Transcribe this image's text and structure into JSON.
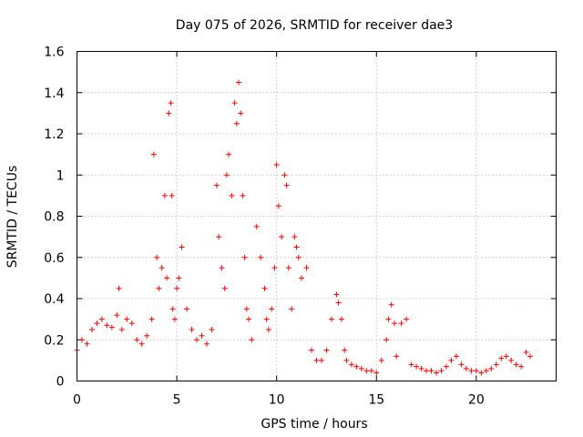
{
  "chart_data": {
    "type": "scatter",
    "title": "Day 075 of 2026, SRMTID for receiver dae3",
    "xlabel": "GPS time / hours",
    "ylabel": "SRMTID / TECUs",
    "xlim": [
      0,
      24
    ],
    "ylim": [
      0,
      1.6
    ],
    "xticks": [
      0,
      5,
      10,
      15,
      20
    ],
    "xtick_labels": [
      "0",
      "5",
      "10",
      "15",
      "20"
    ],
    "yticks": [
      0,
      0.2,
      0.4,
      0.6,
      0.8,
      1.0,
      1.2,
      1.4,
      1.6
    ],
    "ytick_labels": [
      "0",
      "0.2",
      "0.4",
      "0.6",
      "0.8",
      "1",
      "1.2",
      "1.4",
      "1.6"
    ],
    "grid": true,
    "marker": "plus",
    "color": "#ff0000",
    "series": [
      {
        "name": "dae3",
        "x": [
          0.0,
          0.25,
          0.5,
          0.75,
          1.0,
          1.25,
          1.5,
          1.75,
          2.0,
          2.1,
          2.25,
          2.5,
          2.75,
          3.0,
          3.25,
          3.5,
          3.75,
          3.85,
          4.0,
          4.1,
          4.25,
          4.4,
          4.5,
          4.6,
          4.7,
          4.75,
          4.8,
          4.9,
          5.0,
          5.1,
          5.25,
          5.5,
          5.75,
          6.0,
          6.25,
          6.5,
          6.75,
          7.0,
          7.1,
          7.25,
          7.4,
          7.5,
          7.6,
          7.75,
          7.9,
          8.0,
          8.1,
          8.2,
          8.3,
          8.4,
          8.5,
          8.6,
          8.75,
          9.0,
          9.2,
          9.4,
          9.5,
          9.6,
          9.75,
          9.9,
          10.0,
          10.1,
          10.25,
          10.4,
          10.5,
          10.6,
          10.75,
          10.9,
          11.0,
          11.1,
          11.25,
          11.5,
          11.75,
          12.0,
          12.25,
          12.5,
          12.75,
          13.0,
          13.1,
          13.25,
          13.4,
          13.5,
          13.75,
          14.0,
          14.25,
          14.5,
          14.75,
          15.0,
          15.25,
          15.5,
          15.6,
          15.75,
          15.9,
          16.0,
          16.25,
          16.5,
          16.75,
          17.0,
          17.25,
          17.5,
          17.75,
          18.0,
          18.25,
          18.5,
          18.75,
          19.0,
          19.25,
          19.5,
          19.75,
          20.0,
          20.25,
          20.5,
          20.75,
          21.0,
          21.25,
          21.5,
          21.75,
          22.0,
          22.25,
          22.5,
          22.7
        ],
        "y": [
          0.15,
          0.2,
          0.18,
          0.25,
          0.28,
          0.3,
          0.27,
          0.26,
          0.32,
          0.45,
          0.25,
          0.3,
          0.28,
          0.2,
          0.18,
          0.22,
          0.3,
          1.1,
          0.6,
          0.45,
          0.55,
          0.9,
          0.5,
          1.3,
          1.35,
          0.9,
          0.35,
          0.3,
          0.45,
          0.5,
          0.65,
          0.35,
          0.25,
          0.2,
          0.22,
          0.18,
          0.25,
          0.95,
          0.7,
          0.55,
          0.45,
          1.0,
          1.1,
          0.9,
          1.35,
          1.25,
          1.45,
          1.3,
          0.9,
          0.6,
          0.35,
          0.3,
          0.2,
          0.75,
          0.6,
          0.45,
          0.3,
          0.25,
          0.35,
          0.55,
          1.05,
          0.85,
          0.7,
          1.0,
          0.95,
          0.55,
          0.35,
          0.7,
          0.65,
          0.6,
          0.5,
          0.55,
          0.15,
          0.1,
          0.1,
          0.15,
          0.3,
          0.42,
          0.38,
          0.3,
          0.15,
          0.1,
          0.08,
          0.07,
          0.06,
          0.05,
          0.05,
          0.04,
          0.1,
          0.2,
          0.3,
          0.37,
          0.28,
          0.12,
          0.28,
          0.3,
          0.08,
          0.07,
          0.06,
          0.05,
          0.05,
          0.04,
          0.05,
          0.07,
          0.1,
          0.12,
          0.08,
          0.06,
          0.05,
          0.05,
          0.04,
          0.05,
          0.06,
          0.08,
          0.11,
          0.12,
          0.1,
          0.08,
          0.07,
          0.14,
          0.12
        ]
      }
    ]
  }
}
